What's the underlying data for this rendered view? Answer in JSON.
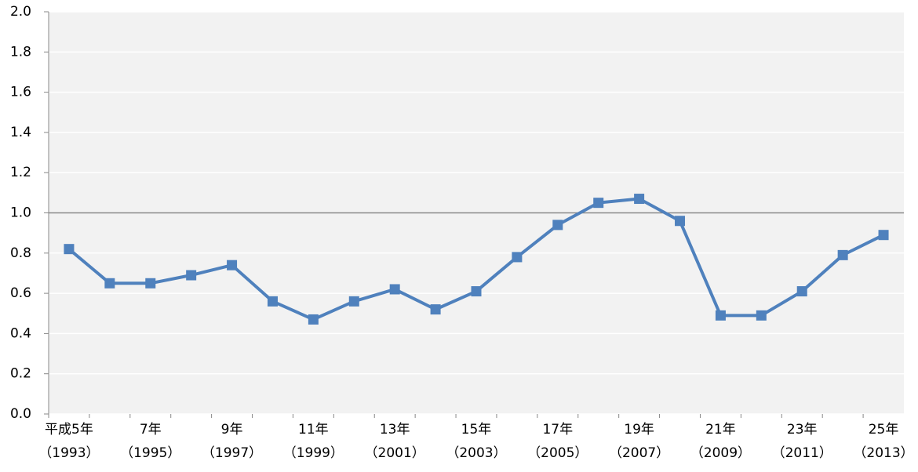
{
  "chart_data": {
    "type": "line",
    "categories": [
      "平成5年\n（1993）",
      null,
      "7年\n（1995）",
      null,
      "9年\n（1997）",
      null,
      "11年\n（1999）",
      null,
      "13年\n（2001）",
      null,
      "15年\n（2003）",
      null,
      "17年\n（2005）",
      null,
      "19年\n（2007）",
      null,
      "21年\n（2009）",
      null,
      "23年\n（2011）",
      null,
      "25年\n（2013）"
    ],
    "series": [
      {
        "name": null,
        "color": "#4f81bd",
        "values": [
          0.82,
          0.65,
          0.65,
          0.69,
          0.74,
          0.56,
          0.47,
          0.56,
          0.62,
          0.52,
          0.61,
          0.78,
          0.94,
          1.05,
          1.07,
          0.96,
          0.49,
          0.49,
          0.61,
          0.79,
          0.89
        ]
      }
    ],
    "ylim": [
      0,
      2
    ],
    "yticks": [
      {
        "value": 0,
        "label": "0.0"
      },
      {
        "value": 0.2,
        "label": "0.2"
      },
      {
        "value": 0.4,
        "label": "0.4"
      },
      {
        "value": 0.6,
        "label": "0.6"
      },
      {
        "value": 0.8,
        "label": "0.8"
      },
      {
        "value": 1,
        "label": "1.0"
      },
      {
        "value": 1.2,
        "label": "1.2"
      },
      {
        "value": 1.4,
        "label": "1.4"
      },
      {
        "value": 1.6,
        "label": "1.6"
      },
      {
        "value": 1.8,
        "label": "1.8"
      },
      {
        "value": 2,
        "label": "2.0"
      }
    ],
    "reference_line": 1,
    "grid": true
  }
}
